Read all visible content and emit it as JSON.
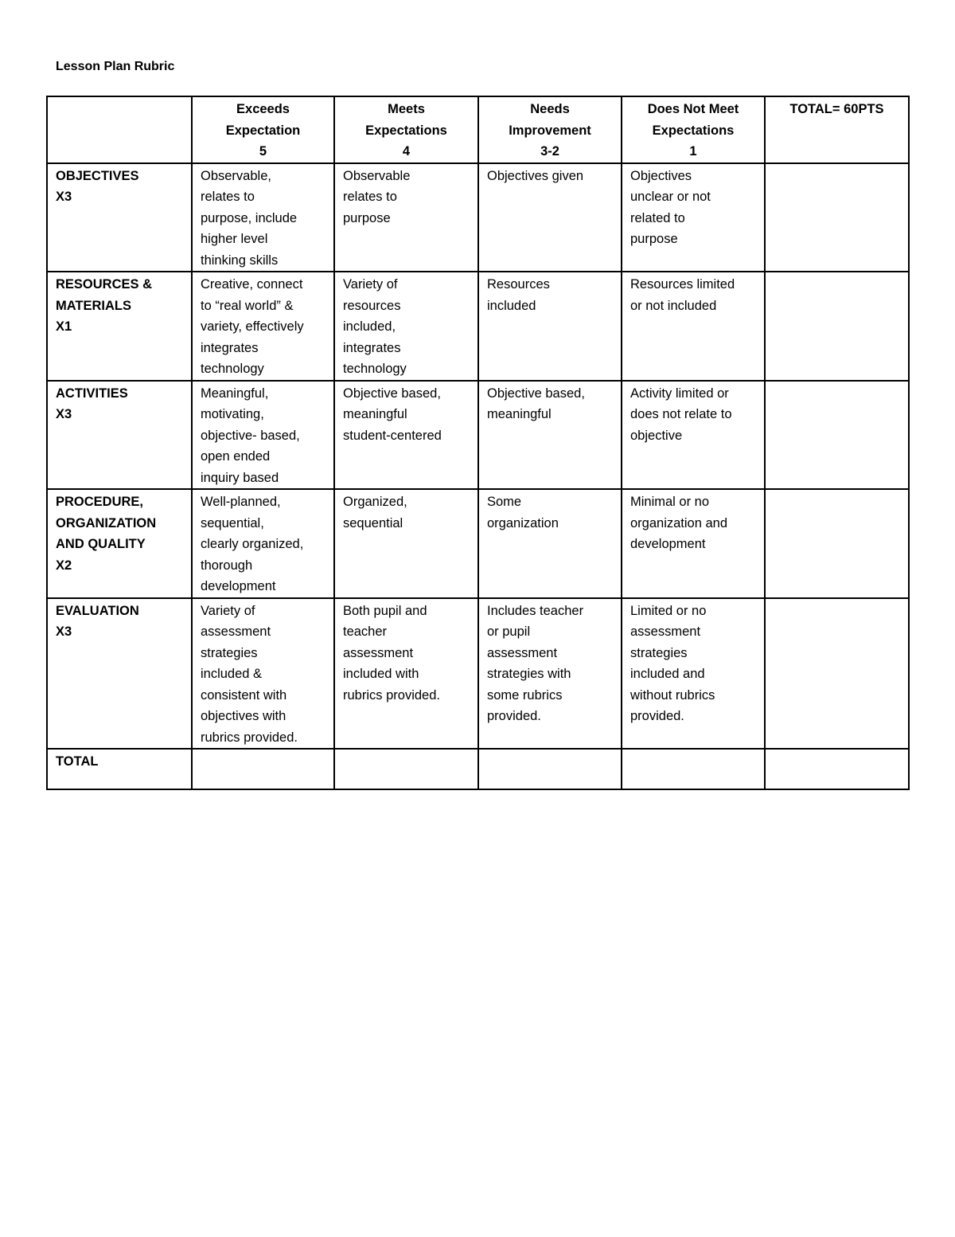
{
  "title": "Lesson Plan Rubric",
  "headers": [
    "",
    "Exceeds\nExpectation\n5",
    "Meets\nExpectations\n4",
    "Needs\nImprovement\n3-2",
    "Does Not Meet\nExpectations\n1",
    "TOTAL= 60PTS"
  ],
  "rows": [
    {
      "label": "OBJECTIVES\nX3",
      "cells": [
        "Observable,\nrelates to\npurpose, include\nhigher level\nthinking skills",
        "Observable\nrelates to\npurpose",
        "Objectives given",
        "Objectives\nunclear or not\nrelated to\npurpose",
        ""
      ]
    },
    {
      "label": "RESOURCES &\nMATERIALS\nX1",
      "cells": [
        "Creative, connect\nto “real world” &\nvariety, effectively\nintegrates\ntechnology",
        "Variety of\nresources\nincluded,\nintegrates\ntechnology",
        "Resources\nincluded",
        "Resources limited\nor not included",
        ""
      ]
    },
    {
      "label": "ACTIVITIES\nX3",
      "cells": [
        "Meaningful,\nmotivating,\nobjective- based,\nopen ended\ninquiry based",
        "Objective based,\nmeaningful\nstudent-centered",
        "Objective based,\nmeaningful",
        "Activity limited or\ndoes not relate to\nobjective",
        ""
      ]
    },
    {
      "label": "PROCEDURE,\nORGANIZATION\nAND QUALITY\nX2",
      "cells": [
        "Well-planned,\nsequential,\nclearly organized,\nthorough\ndevelopment",
        "Organized,\nsequential",
        "Some\norganization",
        "Minimal or no\norganization and\ndevelopment",
        ""
      ]
    },
    {
      "label": "EVALUATION\nX3",
      "cells": [
        "Variety of\nassessment\nstrategies\nincluded &\nconsistent with\nobjectives with\nrubrics provided.",
        "Both pupil and\nteacher\nassessment\nincluded with\nrubrics provided.",
        "Includes teacher\nor pupil\nassessment\nstrategies with\nsome rubrics\nprovided.",
        "Limited or no\nassessment\nstrategies\nincluded and\nwithout rubrics\nprovided.",
        ""
      ]
    },
    {
      "label": "TOTAL",
      "cells": [
        "",
        "",
        "",
        "",
        ""
      ]
    }
  ]
}
